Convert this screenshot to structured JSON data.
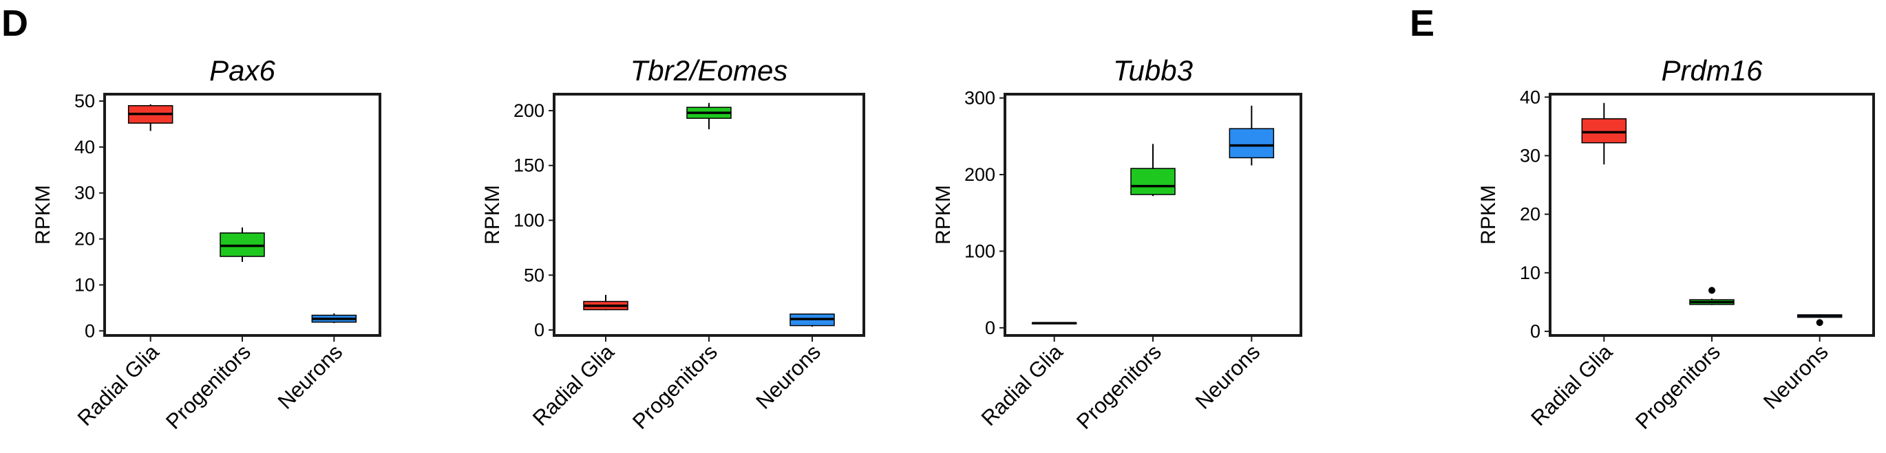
{
  "panel_labels": {
    "left": "D",
    "right": "E"
  },
  "colors": {
    "Radial Glia": "#f4372b",
    "Progenitors": "#1ec81e",
    "Neurons": "#2b8df2",
    "median": "#000000",
    "frame": "#1a1a1a"
  },
  "chart_data": [
    {
      "type": "box",
      "title": "Pax6",
      "ylabel": "RPKM",
      "xlabel": "",
      "categories": [
        "Radial Glia",
        "Progenitors",
        "Neurons"
      ],
      "ylim": [
        -1,
        51.5
      ],
      "yticks": [
        0,
        10,
        20,
        30,
        40,
        50
      ],
      "boxes": [
        {
          "category": "Radial Glia",
          "whisker_low": 43.5,
          "q1": 45.2,
          "median": 47.2,
          "q3": 49.0,
          "whisker_high": 49.3,
          "outliers": []
        },
        {
          "category": "Progenitors",
          "whisker_low": 15.0,
          "q1": 16.2,
          "median": 18.5,
          "q3": 21.3,
          "whisker_high": 22.5,
          "outliers": []
        },
        {
          "category": "Neurons",
          "whisker_low": 1.7,
          "q1": 1.9,
          "median": 2.6,
          "q3": 3.4,
          "whisker_high": 3.8,
          "outliers": []
        }
      ]
    },
    {
      "type": "box",
      "title": "Tbr2/Eomes",
      "ylabel": "RPKM",
      "xlabel": "",
      "categories": [
        "Radial Glia",
        "Progenitors",
        "Neurons"
      ],
      "ylim": [
        -5,
        215
      ],
      "yticks": [
        0,
        50,
        100,
        150,
        200
      ],
      "boxes": [
        {
          "category": "Radial Glia",
          "whisker_low": 18,
          "q1": 18.5,
          "median": 22,
          "q3": 26,
          "whisker_high": 32,
          "outliers": []
        },
        {
          "category": "Progenitors",
          "whisker_low": 183,
          "q1": 193,
          "median": 198,
          "q3": 203,
          "whisker_high": 207,
          "outliers": []
        },
        {
          "category": "Neurons",
          "whisker_low": 3,
          "q1": 4,
          "median": 10,
          "q3": 14.5,
          "whisker_high": 15,
          "outliers": []
        }
      ]
    },
    {
      "type": "box",
      "title": "Tubb3",
      "ylabel": "RPKM",
      "xlabel": "",
      "categories": [
        "Radial Glia",
        "Progenitors",
        "Neurons"
      ],
      "ylim": [
        -10,
        305
      ],
      "yticks": [
        0,
        100,
        200,
        300
      ],
      "boxes": [
        {
          "category": "Radial Glia",
          "whisker_low": 5,
          "q1": 5.5,
          "median": 6,
          "q3": 6.5,
          "whisker_high": 7,
          "outliers": []
        },
        {
          "category": "Progenitors",
          "whisker_low": 172,
          "q1": 174,
          "median": 185,
          "q3": 208,
          "whisker_high": 240,
          "outliers": []
        },
        {
          "category": "Neurons",
          "whisker_low": 212,
          "q1": 222,
          "median": 238,
          "q3": 260,
          "whisker_high": 290,
          "outliers": []
        }
      ]
    },
    {
      "type": "box",
      "title": "Prdm16",
      "ylabel": "RPKM",
      "xlabel": "",
      "categories": [
        "Radial Glia",
        "Progenitors",
        "Neurons"
      ],
      "ylim": [
        -0.7,
        40.5
      ],
      "yticks": [
        0,
        10,
        20,
        30,
        40
      ],
      "boxes": [
        {
          "category": "Radial Glia",
          "whisker_low": 28.5,
          "q1": 32.2,
          "median": 34.0,
          "q3": 36.3,
          "whisker_high": 39.0,
          "outliers": []
        },
        {
          "category": "Progenitors",
          "whisker_low": 4.5,
          "q1": 4.6,
          "median": 5.0,
          "q3": 5.4,
          "whisker_high": 5.6,
          "outliers": [
            7.0
          ]
        },
        {
          "category": "Neurons",
          "whisker_low": 2.3,
          "q1": 2.4,
          "median": 2.7,
          "q3": 2.8,
          "whisker_high": 2.9,
          "outliers": [
            1.5
          ]
        }
      ]
    }
  ]
}
